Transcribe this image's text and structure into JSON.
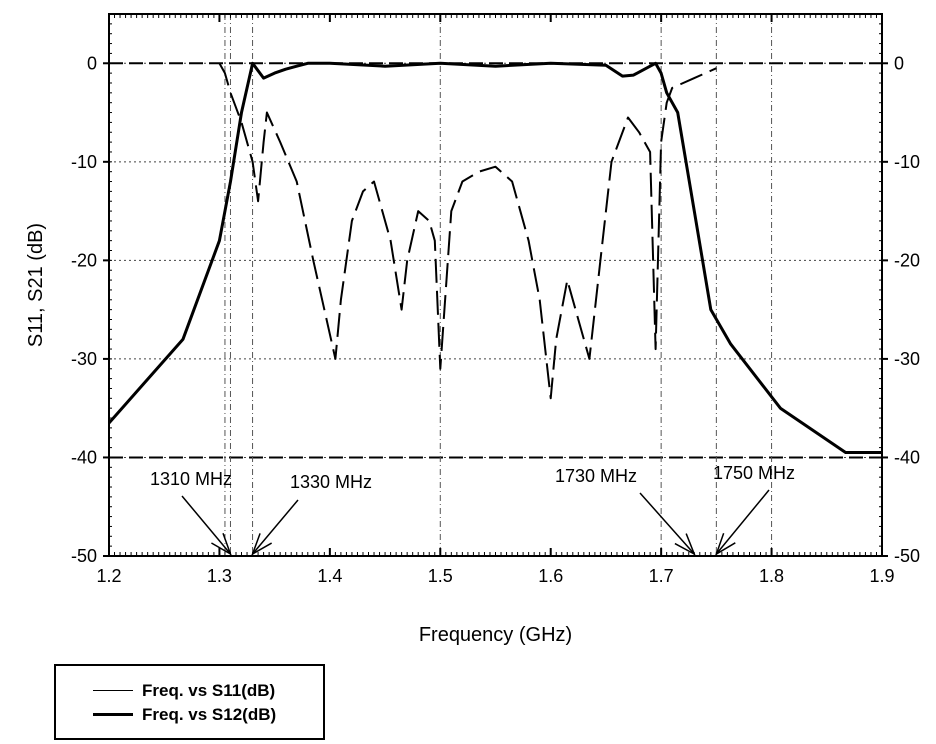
{
  "chart_data": {
    "type": "line",
    "title": "",
    "xlabel": "Frequency (GHz)",
    "ylabel": "S11, S21 (dB)",
    "xlim": [
      1.2,
      1.9
    ],
    "ylim": [
      -50,
      5
    ],
    "x_ticks": [
      "1.2",
      "1.3",
      "1.4",
      "1.5",
      "1.6",
      "1.7",
      "1.8",
      "1.9"
    ],
    "x_tick_values": [
      1.2,
      1.3,
      1.4,
      1.5,
      1.6,
      1.7,
      1.8,
      1.9
    ],
    "y_ticks": [
      "0",
      "-10",
      "-20",
      "-30",
      "-40",
      "-50"
    ],
    "y_tick_values": [
      0,
      -10,
      -20,
      -30,
      -40,
      -50
    ],
    "right_axis_mirrored": true,
    "grid": true,
    "series": [
      {
        "name": "Freq. vs S11(dB)",
        "style": "dashed",
        "x": [
          1.3,
          1.305,
          1.31,
          1.32,
          1.33,
          1.335,
          1.34,
          1.343,
          1.355,
          1.37,
          1.385,
          1.405,
          1.41,
          1.42,
          1.43,
          1.44,
          1.455,
          1.465,
          1.47,
          1.48,
          1.49,
          1.495,
          1.5,
          1.505,
          1.51,
          1.52,
          1.535,
          1.55,
          1.565,
          1.58,
          1.59,
          1.6,
          1.605,
          1.615,
          1.625,
          1.635,
          1.645,
          1.655,
          1.67,
          1.68,
          1.69,
          1.695,
          1.7,
          1.705,
          1.71,
          1.73,
          1.75
        ],
        "y": [
          0,
          -1,
          -3,
          -6,
          -10,
          -14,
          -8,
          -5,
          -8,
          -12,
          -20,
          -30,
          -24,
          -16,
          -13,
          -12,
          -18,
          -25,
          -20,
          -15,
          -16,
          -18,
          -31,
          -23,
          -15,
          -12,
          -11,
          -10.5,
          -12,
          -18,
          -24,
          -34,
          -28,
          -22,
          -26,
          -30,
          -20,
          -10,
          -5.5,
          -7,
          -9,
          -29,
          -8,
          -4,
          -2.5,
          -1.5,
          -0.5
        ]
      },
      {
        "name": "Freq. vs S12(dB)",
        "style": "solid",
        "x": [
          1.2,
          1.267,
          1.3,
          1.31,
          1.32,
          1.33,
          1.34,
          1.35,
          1.36,
          1.37,
          1.38,
          1.4,
          1.45,
          1.5,
          1.55,
          1.6,
          1.65,
          1.665,
          1.675,
          1.69,
          1.695,
          1.7,
          1.705,
          1.715,
          1.73,
          1.745,
          1.763,
          1.808,
          1.867,
          1.9
        ],
        "y": [
          -36.5,
          -28,
          -18,
          -12,
          -5,
          0,
          -1.5,
          -1,
          -0.6,
          -0.3,
          0,
          0,
          -0.3,
          0,
          -0.3,
          0,
          -0.2,
          -1.3,
          -1.2,
          -0.3,
          0,
          -1,
          -3,
          -5,
          -15,
          -25,
          -28.5,
          -35,
          -39.5,
          -39.5
        ]
      }
    ],
    "reference_lines": {
      "horizontal_dashed": [
        -40,
        0
      ]
    },
    "vertical_markers_ghz": [
      1.305,
      1.31,
      1.33,
      1.5,
      1.7,
      1.75,
      1.8
    ],
    "annotations": [
      {
        "text": "1310 MHz",
        "x": 1.31,
        "y": -50
      },
      {
        "text": "1330 MHz",
        "x": 1.33,
        "y": -50
      },
      {
        "text": "1730 MHz",
        "x": 1.73,
        "y": -50
      },
      {
        "text": "1750 MHz",
        "x": 1.75,
        "y": -50
      }
    ]
  },
  "legend": {
    "items": [
      {
        "label": "Freq. vs S11(dB)",
        "style": "thin"
      },
      {
        "label": "Freq. vs S12(dB)",
        "style": "bold"
      }
    ]
  }
}
